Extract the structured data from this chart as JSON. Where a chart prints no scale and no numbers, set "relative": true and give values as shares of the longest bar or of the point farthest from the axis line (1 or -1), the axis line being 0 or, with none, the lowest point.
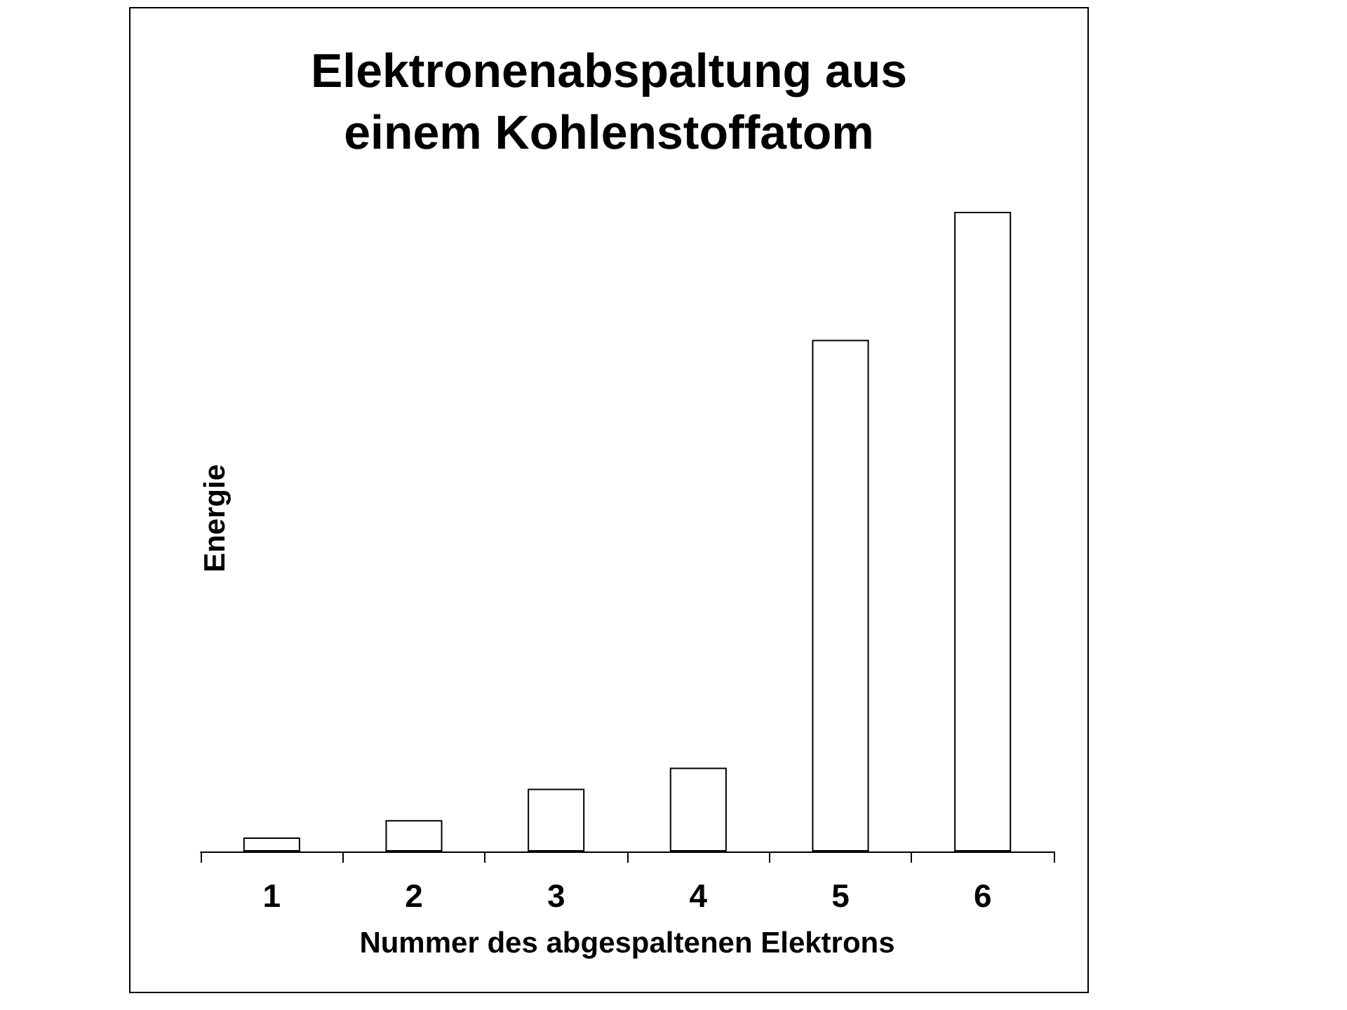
{
  "chart_data": {
    "type": "bar",
    "title": "Elektronenabspaltung aus\neinem Kohlenstoffatom",
    "xlabel": "Nummer des abgespaltenen Elektrons",
    "ylabel": "Energie",
    "categories": [
      "1",
      "2",
      "3",
      "4",
      "5",
      "6"
    ],
    "values": [
      0.022,
      0.049,
      0.098,
      0.131,
      0.8,
      1
    ],
    "color": "#ffffff",
    "relative": true,
    "grid": false
  }
}
